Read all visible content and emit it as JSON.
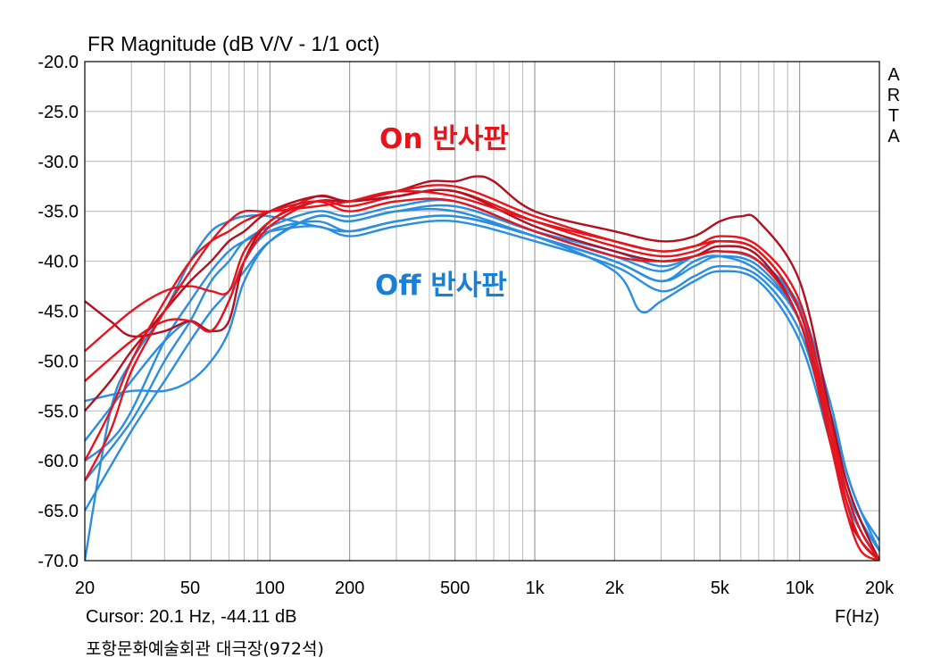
{
  "chart_data": {
    "type": "line",
    "title": "FR Magnitude (dB V/V - 1/1 oct)",
    "brand": "ARTA",
    "xlabel": "F(Hz)",
    "x_scale": "log",
    "xlim": [
      20,
      20000
    ],
    "ylim": [
      -70,
      -20
    ],
    "grid": true,
    "x_tick_values": [
      20,
      50,
      100,
      200,
      500,
      1000,
      2000,
      5000,
      10000,
      20000
    ],
    "x_tick_labels": [
      "20",
      "50",
      "100",
      "200",
      "500",
      "1k",
      "2k",
      "5k",
      "10k",
      "20k"
    ],
    "y_tick_values": [
      -20,
      -25,
      -30,
      -35,
      -40,
      -45,
      -50,
      -55,
      -60,
      -65,
      -70
    ],
    "y_tick_labels": [
      "-20.0",
      "-25.0",
      "-30.0",
      "-35.0",
      "-40.0",
      "-45.0",
      "-50.0",
      "-55.0",
      "-60.0",
      "-65.0",
      "-70.0"
    ],
    "annotations": {
      "on": {
        "text": "On 반사판",
        "color": "#e8141c"
      },
      "off": {
        "text": "Off 반사판",
        "color": "#1a7fd6"
      }
    },
    "colors": {
      "on": "#e8141c",
      "on_dark": "#b01020",
      "off": "#2a8ee0",
      "grid": "#b8b8b8"
    },
    "series_groups": [
      {
        "group": "off",
        "curves": [
          {
            "x": [
              20,
              25,
              30,
              40,
              50,
              60,
              70,
              80,
              100,
              150,
              200,
              300,
              500,
              1000,
              2000,
              2500,
              3000,
              4000,
              5000,
              7000,
              10000,
              13000,
              15000,
              17000,
              20000
            ],
            "y": [
              -70,
              -55,
              -50,
              -45,
              -40,
              -37,
              -36,
              -35.5,
              -35.5,
              -36.5,
              -37,
              -36,
              -35.5,
              -37.5,
              -41,
              -45,
              -44,
              -42,
              -41,
              -42,
              -48,
              -58,
              -64,
              -67,
              -70
            ]
          },
          {
            "x": [
              20,
              25,
              30,
              40,
              50,
              60,
              70,
              80,
              100,
              150,
              200,
              300,
              500,
              1000,
              2000,
              3000,
              4000,
              5000,
              7000,
              10000,
              13000,
              15000,
              17000,
              20000
            ],
            "y": [
              -60,
              -58,
              -55,
              -48,
              -44,
              -41,
              -39,
              -38,
              -37,
              -36.5,
              -37.5,
              -36.5,
              -36,
              -38,
              -40.5,
              -43,
              -41.5,
              -40.5,
              -41.5,
              -47,
              -57,
              -63,
              -66,
              -69
            ]
          },
          {
            "x": [
              20,
              30,
              40,
              50,
              60,
              70,
              80,
              100,
              150,
              200,
              300,
              500,
              1000,
              2000,
              3000,
              4000,
              5000,
              7000,
              10000,
              13000,
              15000,
              17000,
              20000
            ],
            "y": [
              -54,
              -53,
              -53,
              -52,
              -50,
              -47,
              -42,
              -38,
              -35.5,
              -36,
              -35,
              -35,
              -37.5,
              -40,
              -42,
              -40.5,
              -39.5,
              -40.5,
              -46,
              -56,
              -62,
              -66,
              -69
            ]
          },
          {
            "x": [
              20,
              30,
              40,
              50,
              60,
              70,
              80,
              100,
              150,
              200,
              300,
              500,
              1000,
              2000,
              3000,
              4000,
              5000,
              7000,
              10000,
              13000,
              15000,
              17000,
              20000
            ],
            "y": [
              -62,
              -56,
              -50,
              -46,
              -42,
              -40,
              -38,
              -36.5,
              -35,
              -35.5,
              -34.5,
              -34,
              -37,
              -39.5,
              -41,
              -39.5,
              -39,
              -40,
              -45,
              -55,
              -61,
              -65,
              -68
            ]
          },
          {
            "x": [
              20,
              30,
              40,
              50,
              60,
              70,
              80,
              100,
              150,
              200,
              300,
              500,
              1000,
              2000,
              3000,
              4000,
              5000,
              7000,
              10000,
              13000,
              15000,
              17000,
              20000
            ],
            "y": [
              -65,
              -57,
              -52,
              -48,
              -45,
              -43,
              -41,
              -38,
              -35.5,
              -36,
              -35,
              -34.5,
              -37,
              -39,
              -40.5,
              -39.5,
              -39,
              -40,
              -44.5,
              -54,
              -61,
              -65,
              -69
            ]
          },
          {
            "x": [
              20,
              30,
              40,
              50,
              60,
              70,
              80,
              100,
              150,
              200,
              300,
              500,
              1000,
              2000,
              3000,
              4000,
              5000,
              7000,
              10000,
              13000,
              15000,
              17000,
              20000
            ],
            "y": [
              -58,
              -52,
              -48,
              -46,
              -47,
              -44,
              -40,
              -37,
              -36,
              -37,
              -36,
              -35.5,
              -37.5,
              -40,
              -42,
              -40,
              -39.5,
              -41,
              -46,
              -56,
              -63,
              -67,
              -70
            ]
          }
        ]
      },
      {
        "group": "on",
        "curves": [
          {
            "x": [
              20,
              25,
              30,
              40,
              50,
              60,
              70,
              80,
              100,
              150,
              200,
              300,
              400,
              500,
              600,
              700,
              1000,
              2000,
              3000,
              4000,
              5000,
              6000,
              7000,
              10000,
              13000,
              15000,
              17000,
              20000
            ],
            "y": [
              -44,
              -46,
              -47.5,
              -47,
              -46,
              -47,
              -46,
              -40,
              -36,
              -34,
              -34,
              -33,
              -32,
              -32,
              -31.5,
              -32,
              -35,
              -37,
              -38,
              -37.5,
              -36,
              -35.5,
              -36,
              -42,
              -55,
              -62,
              -66,
              -70
            ]
          },
          {
            "x": [
              20,
              30,
              40,
              50,
              60,
              70,
              80,
              100,
              150,
              200,
              300,
              500,
              1000,
              2000,
              3000,
              4000,
              5000,
              7000,
              10000,
              13000,
              15000,
              17000,
              20000
            ],
            "y": [
              -49,
              -45,
              -43,
              -42.5,
              -43,
              -43,
              -39,
              -36,
              -33.5,
              -34,
              -33,
              -32.5,
              -35.5,
              -38,
              -39,
              -38.5,
              -37.5,
              -38.5,
              -44,
              -56,
              -63,
              -67,
              -70
            ]
          },
          {
            "x": [
              20,
              30,
              40,
              50,
              60,
              70,
              80,
              100,
              150,
              200,
              300,
              500,
              1000,
              2000,
              3000,
              4000,
              5000,
              7000,
              10000,
              13000,
              15000,
              17000,
              20000
            ],
            "y": [
              -52,
              -48,
              -46,
              -46,
              -47,
              -44,
              -40,
              -36.5,
              -34,
              -34.5,
              -33.5,
              -33,
              -36,
              -38.5,
              -39.5,
              -39,
              -38,
              -39,
              -45,
              -57,
              -64,
              -68,
              -70
            ]
          },
          {
            "x": [
              20,
              25,
              30,
              40,
              50,
              60,
              70,
              80,
              100,
              150,
              200,
              300,
              500,
              1000,
              2000,
              3000,
              4000,
              5000,
              7000,
              10000,
              13000,
              15000,
              17000,
              20000
            ],
            "y": [
              -55,
              -52,
              -49,
              -45,
              -42,
              -40,
              -38,
              -37,
              -35,
              -33.5,
              -34,
              -33.5,
              -33,
              -36.5,
              -39,
              -40,
              -39.5,
              -38.5,
              -39.5,
              -46,
              -58,
              -65,
              -68,
              -70
            ]
          },
          {
            "x": [
              20,
              25,
              30,
              40,
              50,
              60,
              70,
              80,
              100,
              150,
              200,
              300,
              500,
              1000,
              2000,
              3000,
              4000,
              5000,
              7000,
              10000,
              13000,
              15000,
              17000,
              20000
            ],
            "y": [
              -60,
              -55,
              -50,
              -44,
              -40,
              -38,
              -37,
              -36,
              -35,
              -34,
              -35,
              -34,
              -34,
              -37,
              -39.5,
              -40,
              -39.5,
              -39,
              -40,
              -46,
              -58,
              -65,
              -69,
              -70
            ]
          },
          {
            "x": [
              20,
              25,
              30,
              40,
              50,
              60,
              70,
              80,
              100,
              150,
              200,
              300,
              500,
              1000,
              2000,
              3000,
              4000,
              5000,
              7000,
              10000,
              13000,
              15000,
              17000,
              20000
            ],
            "y": [
              -62,
              -57,
              -51,
              -45,
              -41,
              -38,
              -36,
              -35,
              -35,
              -34.5,
              -34,
              -33,
              -33.5,
              -36,
              -38,
              -39,
              -38.5,
              -38,
              -39,
              -45,
              -57,
              -64,
              -68,
              -70
            ]
          }
        ]
      }
    ]
  },
  "footer": {
    "cursor": "Cursor: 20.1 Hz, -44.11 dB",
    "venue": "포항문화예술회관 대극장(972석)"
  }
}
